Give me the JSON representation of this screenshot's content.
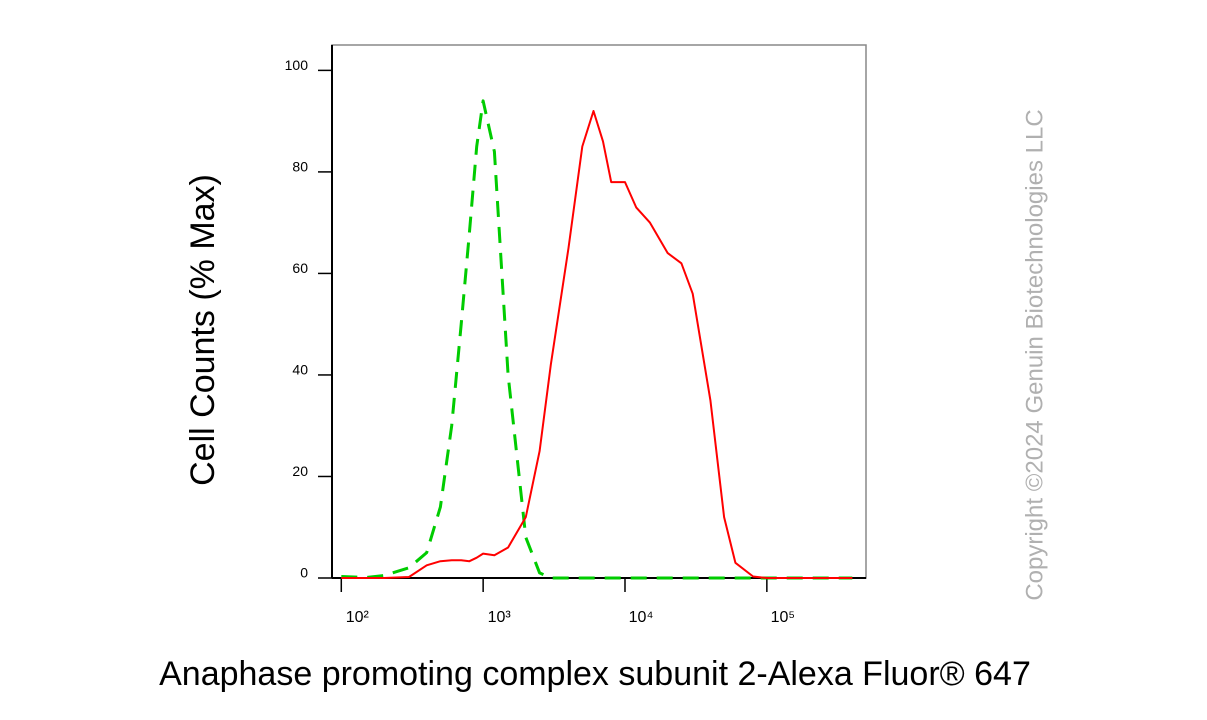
{
  "chart_data": {
    "type": "line",
    "ylabel": "Cell Counts (% Max)",
    "xlabel": "Anaphase promoting complex subunit 2-Alexa Fluor® 647",
    "watermark": "Copyright ©2024 Genuin Biotechnologies LLC",
    "xscale": "log",
    "xlim": [
      86,
      500000
    ],
    "ylim": [
      0,
      105
    ],
    "xticks": [
      {
        "value": 100,
        "label": "10²"
      },
      {
        "value": 1000,
        "label": "10³"
      },
      {
        "value": 10000,
        "label": "10⁴"
      },
      {
        "value": 100000,
        "label": "10⁵"
      }
    ],
    "yticks": [
      0,
      20,
      40,
      60,
      80,
      100
    ],
    "x": [
      100,
      150,
      200,
      300,
      400,
      500,
      600,
      700,
      800,
      900,
      1000,
      1200,
      1500,
      2000,
      2500,
      3000,
      4000,
      5000,
      6000,
      7000,
      8000,
      10000,
      12000,
      15000,
      20000,
      25000,
      30000,
      40000,
      50000,
      60000,
      80000,
      100000,
      200000,
      400000
    ],
    "series": [
      {
        "color": "#00cc00",
        "dashed": true,
        "values": [
          0.3,
          0.1,
          0.5,
          2,
          5,
          14,
          30,
          50,
          68,
          85,
          94,
          84,
          40,
          8,
          1,
          0,
          0,
          0,
          0,
          0,
          0,
          0,
          0,
          0,
          0,
          0,
          0,
          0,
          0,
          0,
          0,
          0,
          0,
          0
        ]
      },
      {
        "color": "#ff0000",
        "dashed": false,
        "values": [
          0,
          0,
          0,
          0.2,
          2.5,
          3.3,
          3.5,
          3.5,
          3.3,
          4,
          4.8,
          4.5,
          6,
          12,
          25,
          42,
          65,
          85,
          92,
          86,
          78,
          78,
          73,
          70,
          64,
          62,
          56,
          35,
          12,
          3,
          0.3,
          0,
          0,
          0
        ]
      }
    ]
  }
}
